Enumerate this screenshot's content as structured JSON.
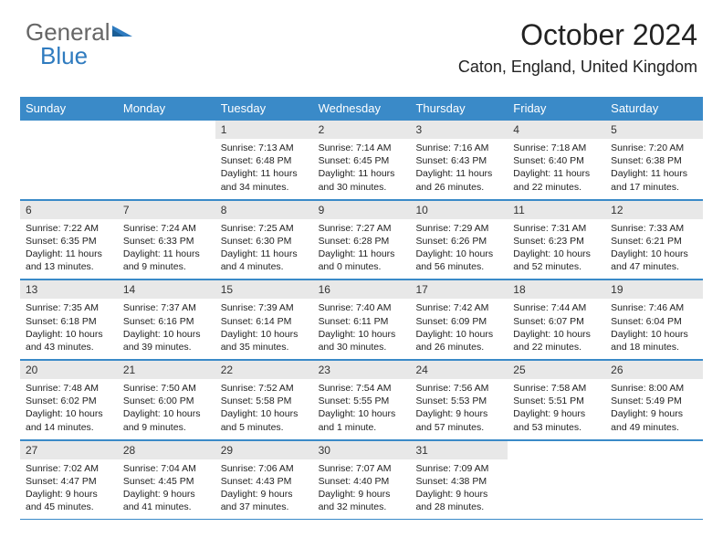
{
  "brand": {
    "part1": "General",
    "part2": "Blue"
  },
  "colors": {
    "header_bg": "#3a8ac8",
    "header_text": "#ffffff",
    "daynum_bg": "#e8e8e8",
    "text": "#222222",
    "rule": "#3a8ac8"
  },
  "title": "October 2024",
  "location": "Caton, England, United Kingdom",
  "day_headers": [
    "Sunday",
    "Monday",
    "Tuesday",
    "Wednesday",
    "Thursday",
    "Friday",
    "Saturday"
  ],
  "weeks": [
    [
      {
        "empty": true
      },
      {
        "empty": true
      },
      {
        "day": "1",
        "sunrise": "Sunrise: 7:13 AM",
        "sunset": "Sunset: 6:48 PM",
        "daylight1": "Daylight: 11 hours",
        "daylight2": "and 34 minutes."
      },
      {
        "day": "2",
        "sunrise": "Sunrise: 7:14 AM",
        "sunset": "Sunset: 6:45 PM",
        "daylight1": "Daylight: 11 hours",
        "daylight2": "and 30 minutes."
      },
      {
        "day": "3",
        "sunrise": "Sunrise: 7:16 AM",
        "sunset": "Sunset: 6:43 PM",
        "daylight1": "Daylight: 11 hours",
        "daylight2": "and 26 minutes."
      },
      {
        "day": "4",
        "sunrise": "Sunrise: 7:18 AM",
        "sunset": "Sunset: 6:40 PM",
        "daylight1": "Daylight: 11 hours",
        "daylight2": "and 22 minutes."
      },
      {
        "day": "5",
        "sunrise": "Sunrise: 7:20 AM",
        "sunset": "Sunset: 6:38 PM",
        "daylight1": "Daylight: 11 hours",
        "daylight2": "and 17 minutes."
      }
    ],
    [
      {
        "day": "6",
        "sunrise": "Sunrise: 7:22 AM",
        "sunset": "Sunset: 6:35 PM",
        "daylight1": "Daylight: 11 hours",
        "daylight2": "and 13 minutes."
      },
      {
        "day": "7",
        "sunrise": "Sunrise: 7:24 AM",
        "sunset": "Sunset: 6:33 PM",
        "daylight1": "Daylight: 11 hours",
        "daylight2": "and 9 minutes."
      },
      {
        "day": "8",
        "sunrise": "Sunrise: 7:25 AM",
        "sunset": "Sunset: 6:30 PM",
        "daylight1": "Daylight: 11 hours",
        "daylight2": "and 4 minutes."
      },
      {
        "day": "9",
        "sunrise": "Sunrise: 7:27 AM",
        "sunset": "Sunset: 6:28 PM",
        "daylight1": "Daylight: 11 hours",
        "daylight2": "and 0 minutes."
      },
      {
        "day": "10",
        "sunrise": "Sunrise: 7:29 AM",
        "sunset": "Sunset: 6:26 PM",
        "daylight1": "Daylight: 10 hours",
        "daylight2": "and 56 minutes."
      },
      {
        "day": "11",
        "sunrise": "Sunrise: 7:31 AM",
        "sunset": "Sunset: 6:23 PM",
        "daylight1": "Daylight: 10 hours",
        "daylight2": "and 52 minutes."
      },
      {
        "day": "12",
        "sunrise": "Sunrise: 7:33 AM",
        "sunset": "Sunset: 6:21 PM",
        "daylight1": "Daylight: 10 hours",
        "daylight2": "and 47 minutes."
      }
    ],
    [
      {
        "day": "13",
        "sunrise": "Sunrise: 7:35 AM",
        "sunset": "Sunset: 6:18 PM",
        "daylight1": "Daylight: 10 hours",
        "daylight2": "and 43 minutes."
      },
      {
        "day": "14",
        "sunrise": "Sunrise: 7:37 AM",
        "sunset": "Sunset: 6:16 PM",
        "daylight1": "Daylight: 10 hours",
        "daylight2": "and 39 minutes."
      },
      {
        "day": "15",
        "sunrise": "Sunrise: 7:39 AM",
        "sunset": "Sunset: 6:14 PM",
        "daylight1": "Daylight: 10 hours",
        "daylight2": "and 35 minutes."
      },
      {
        "day": "16",
        "sunrise": "Sunrise: 7:40 AM",
        "sunset": "Sunset: 6:11 PM",
        "daylight1": "Daylight: 10 hours",
        "daylight2": "and 30 minutes."
      },
      {
        "day": "17",
        "sunrise": "Sunrise: 7:42 AM",
        "sunset": "Sunset: 6:09 PM",
        "daylight1": "Daylight: 10 hours",
        "daylight2": "and 26 minutes."
      },
      {
        "day": "18",
        "sunrise": "Sunrise: 7:44 AM",
        "sunset": "Sunset: 6:07 PM",
        "daylight1": "Daylight: 10 hours",
        "daylight2": "and 22 minutes."
      },
      {
        "day": "19",
        "sunrise": "Sunrise: 7:46 AM",
        "sunset": "Sunset: 6:04 PM",
        "daylight1": "Daylight: 10 hours",
        "daylight2": "and 18 minutes."
      }
    ],
    [
      {
        "day": "20",
        "sunrise": "Sunrise: 7:48 AM",
        "sunset": "Sunset: 6:02 PM",
        "daylight1": "Daylight: 10 hours",
        "daylight2": "and 14 minutes."
      },
      {
        "day": "21",
        "sunrise": "Sunrise: 7:50 AM",
        "sunset": "Sunset: 6:00 PM",
        "daylight1": "Daylight: 10 hours",
        "daylight2": "and 9 minutes."
      },
      {
        "day": "22",
        "sunrise": "Sunrise: 7:52 AM",
        "sunset": "Sunset: 5:58 PM",
        "daylight1": "Daylight: 10 hours",
        "daylight2": "and 5 minutes."
      },
      {
        "day": "23",
        "sunrise": "Sunrise: 7:54 AM",
        "sunset": "Sunset: 5:55 PM",
        "daylight1": "Daylight: 10 hours",
        "daylight2": "and 1 minute."
      },
      {
        "day": "24",
        "sunrise": "Sunrise: 7:56 AM",
        "sunset": "Sunset: 5:53 PM",
        "daylight1": "Daylight: 9 hours",
        "daylight2": "and 57 minutes."
      },
      {
        "day": "25",
        "sunrise": "Sunrise: 7:58 AM",
        "sunset": "Sunset: 5:51 PM",
        "daylight1": "Daylight: 9 hours",
        "daylight2": "and 53 minutes."
      },
      {
        "day": "26",
        "sunrise": "Sunrise: 8:00 AM",
        "sunset": "Sunset: 5:49 PM",
        "daylight1": "Daylight: 9 hours",
        "daylight2": "and 49 minutes."
      }
    ],
    [
      {
        "day": "27",
        "sunrise": "Sunrise: 7:02 AM",
        "sunset": "Sunset: 4:47 PM",
        "daylight1": "Daylight: 9 hours",
        "daylight2": "and 45 minutes."
      },
      {
        "day": "28",
        "sunrise": "Sunrise: 7:04 AM",
        "sunset": "Sunset: 4:45 PM",
        "daylight1": "Daylight: 9 hours",
        "daylight2": "and 41 minutes."
      },
      {
        "day": "29",
        "sunrise": "Sunrise: 7:06 AM",
        "sunset": "Sunset: 4:43 PM",
        "daylight1": "Daylight: 9 hours",
        "daylight2": "and 37 minutes."
      },
      {
        "day": "30",
        "sunrise": "Sunrise: 7:07 AM",
        "sunset": "Sunset: 4:40 PM",
        "daylight1": "Daylight: 9 hours",
        "daylight2": "and 32 minutes."
      },
      {
        "day": "31",
        "sunrise": "Sunrise: 7:09 AM",
        "sunset": "Sunset: 4:38 PM",
        "daylight1": "Daylight: 9 hours",
        "daylight2": "and 28 minutes."
      },
      {
        "empty": true
      },
      {
        "empty": true
      }
    ]
  ]
}
